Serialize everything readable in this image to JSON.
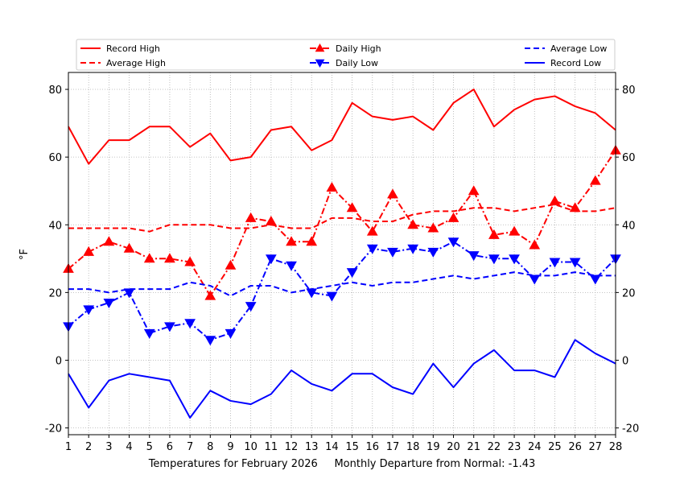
{
  "chart_data": {
    "type": "line",
    "title": "",
    "xlabel": "Temperatures for February 2026     Monthly Departure from Normal: -1.43",
    "ylabel": "°F",
    "x": [
      1,
      2,
      3,
      4,
      5,
      6,
      7,
      8,
      9,
      10,
      11,
      12,
      13,
      14,
      15,
      16,
      17,
      18,
      19,
      20,
      21,
      22,
      23,
      24,
      25,
      26,
      27,
      28
    ],
    "xlim": [
      1,
      28
    ],
    "ylim": [
      -22,
      85
    ],
    "yticks": [
      -20,
      0,
      20,
      40,
      60,
      80
    ],
    "grid": true,
    "legend_position": "top",
    "series": [
      {
        "name": "Record High",
        "color": "#ff0000",
        "style": "solid",
        "marker": "none",
        "values": [
          69,
          58,
          65,
          65,
          69,
          69,
          63,
          67,
          59,
          60,
          68,
          69,
          62,
          65,
          76,
          72,
          71,
          72,
          68,
          76,
          80,
          69,
          74,
          77,
          78,
          75,
          73,
          68
        ]
      },
      {
        "name": "Average High",
        "color": "#ff0000",
        "style": "dashed",
        "marker": "none",
        "values": [
          39,
          39,
          39,
          39,
          38,
          40,
          40,
          40,
          39,
          39,
          40,
          39,
          39,
          42,
          42,
          41,
          41,
          43,
          44,
          44,
          45,
          45,
          44,
          45,
          46,
          44,
          44,
          45
        ]
      },
      {
        "name": "Daily High",
        "color": "#ff0000",
        "style": "dashdot",
        "marker": "triangle-up",
        "values": [
          27,
          32,
          35,
          33,
          30,
          30,
          29,
          19,
          28,
          42,
          41,
          35,
          35,
          51,
          45,
          38,
          49,
          40,
          39,
          42,
          50,
          37,
          38,
          34,
          47,
          45,
          53,
          62
        ]
      },
      {
        "name": "Daily Low",
        "color": "#0000ff",
        "style": "dashdot",
        "marker": "triangle-down",
        "values": [
          10,
          15,
          17,
          20,
          8,
          10,
          11,
          6,
          8,
          16,
          30,
          28,
          20,
          19,
          26,
          33,
          32,
          33,
          32,
          35,
          31,
          30,
          30,
          24,
          29,
          29,
          24,
          30
        ]
      },
      {
        "name": "Average Low",
        "color": "#0000ff",
        "style": "dashed",
        "marker": "none",
        "values": [
          21,
          21,
          20,
          21,
          21,
          21,
          23,
          22,
          19,
          22,
          22,
          20,
          21,
          22,
          23,
          22,
          23,
          23,
          24,
          25,
          24,
          25,
          26,
          25,
          25,
          26,
          25,
          25
        ]
      },
      {
        "name": "Record Low",
        "color": "#0000ff",
        "style": "solid",
        "marker": "none",
        "values": [
          -4,
          -14,
          -6,
          -4,
          -5,
          -6,
          -17,
          -9,
          -12,
          -13,
          -10,
          -3,
          -7,
          -9,
          -4,
          -4,
          -8,
          -10,
          -1,
          -8,
          -1,
          3,
          -3,
          -3,
          -5,
          6,
          2,
          -1
        ]
      }
    ],
    "legend_order": [
      "Record High",
      "Average High",
      "Daily High",
      "Daily Low",
      "Average Low",
      "Record Low"
    ]
  }
}
